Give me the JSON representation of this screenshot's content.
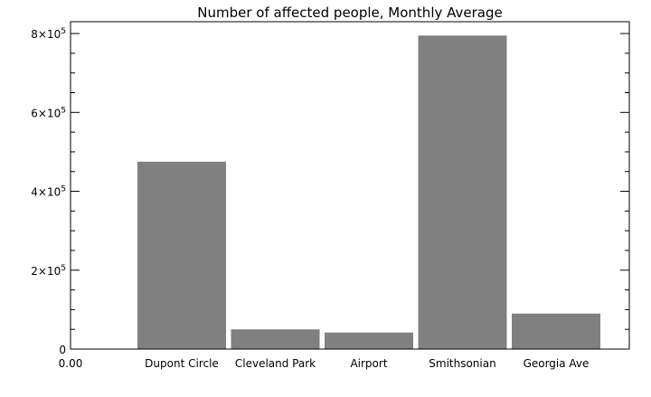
{
  "chart_data": {
    "type": "bar",
    "title": "Number of affected people, Monthly Average",
    "xlabel": "",
    "ylabel": "",
    "categories": [
      "Dupont Circle",
      "Cleveland Park",
      "Airport",
      "Smithsonian",
      "Georgia Ave"
    ],
    "values": [
      475000,
      50000,
      42000,
      795000,
      90000
    ],
    "ylim": [
      0,
      830000
    ],
    "yticks": [
      0,
      200000,
      400000,
      600000,
      800000
    ],
    "ytick_labels": [
      {
        "mantissa": "0",
        "exponent": ""
      },
      {
        "mantissa": "2×10",
        "exponent": "5"
      },
      {
        "mantissa": "4×10",
        "exponent": "5"
      },
      {
        "mantissa": "6×10",
        "exponent": "5"
      },
      {
        "mantissa": "8×10",
        "exponent": "5"
      }
    ],
    "x_origin_label": "0.00",
    "bar_color": "#808080",
    "grid": false,
    "legend": "none"
  }
}
